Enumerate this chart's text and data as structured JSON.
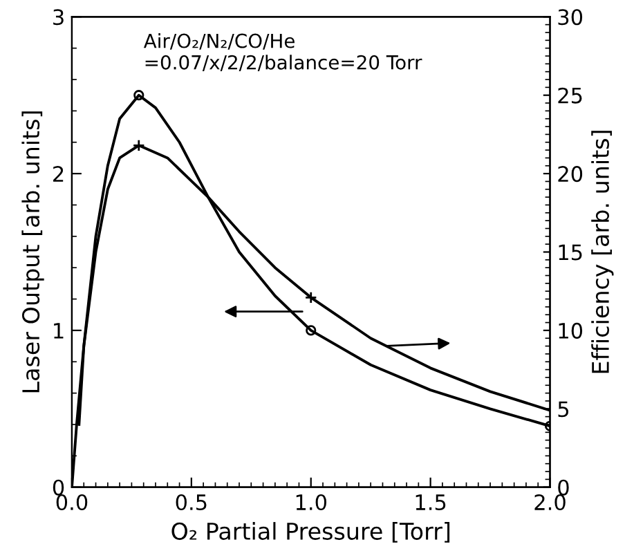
{
  "chart_data": {
    "type": "line",
    "xlabel": "O₂ Partial Pressure [Torr]",
    "ylabel": "Laser Output [arb. units]",
    "y2label": "Efficiency [arb. units]",
    "annotations": [
      "Air/O₂/N₂/CO/He\n=0.07/x/2/2/balance=20 Torr"
    ],
    "xlim": [
      0,
      2
    ],
    "xticks": [
      {
        "value": 0,
        "label": "0.0"
      },
      0.5,
      {
        "value": 1,
        "label": "1.0"
      },
      1.5,
      {
        "value": 2,
        "label": "2.0"
      }
    ],
    "ylim": [
      0,
      3
    ],
    "yticks": [
      0,
      1,
      2,
      3
    ],
    "y2lim": [
      0,
      30
    ],
    "y2ticks": [
      0,
      5,
      10,
      15,
      20,
      25,
      30
    ],
    "grid": false,
    "legend": false,
    "line_style": "solid",
    "series": [
      {
        "color": "#000000",
        "marker": "none",
        "x": [
          0,
          0.02,
          0.05,
          0.1,
          0.15,
          0.2,
          0.28,
          0.35,
          0.45,
          0.57,
          0.7,
          0.85,
          1.0,
          1.25,
          1.5,
          1.75,
          2.0
        ],
        "values": [
          0,
          0.4,
          0.9,
          1.6,
          2.05,
          2.35,
          2.5,
          2.42,
          2.2,
          1.85,
          1.5,
          1.22,
          1.0,
          0.78,
          0.62,
          0.5,
          0.39
        ]
      },
      {
        "color": "#000000",
        "marker": "none",
        "axis": "y2",
        "x": [
          0.03,
          0.05,
          0.1,
          0.15,
          0.2,
          0.28,
          0.4,
          0.57,
          0.7,
          0.85,
          1.0,
          1.25,
          1.5,
          1.75,
          2.0
        ],
        "values": [
          4,
          9,
          15,
          19,
          21,
          21.8,
          21,
          18.5,
          16.3,
          14,
          12.1,
          9.5,
          7.6,
          6.1,
          4.9
        ]
      },
      {
        "type": "scatter",
        "color": "#000000",
        "marker": "circle",
        "x": [
          0.28,
          1.0,
          2.0
        ],
        "values": [
          2.5,
          1.0,
          0.39
        ]
      },
      {
        "type": "scatter",
        "color": "#000000",
        "marker": "cross",
        "axis": "y2",
        "x": [
          0.28,
          1.0
        ],
        "values": [
          21.8,
          12.1
        ]
      }
    ]
  }
}
